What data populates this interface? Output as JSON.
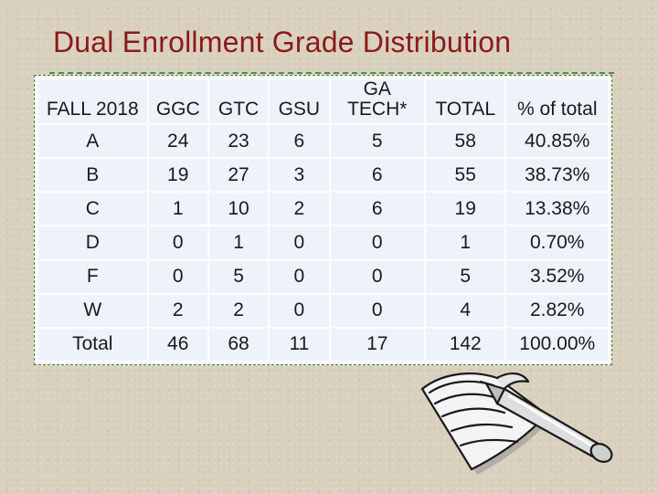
{
  "slide": {
    "title": "Dual Enrollment Grade Distribution"
  },
  "table": {
    "headers": [
      {
        "lines": [
          "FALL 2018"
        ]
      },
      {
        "lines": [
          "GGC"
        ]
      },
      {
        "lines": [
          "GTC"
        ]
      },
      {
        "lines": [
          "GSU"
        ]
      },
      {
        "lines": [
          "GA",
          "TECH*"
        ]
      },
      {
        "lines": [
          "TOTAL"
        ]
      },
      {
        "lines": [
          "% of total"
        ]
      }
    ],
    "rows": [
      [
        "A",
        "24",
        "23",
        "6",
        "5",
        "58",
        "40.85%"
      ],
      [
        "B",
        "19",
        "27",
        "3",
        "6",
        "55",
        "38.73%"
      ],
      [
        "C",
        "1",
        "10",
        "2",
        "6",
        "19",
        "13.38%"
      ],
      [
        "D",
        "0",
        "1",
        "0",
        "0",
        "1",
        "0.70%"
      ],
      [
        "F",
        "0",
        "5",
        "0",
        "0",
        "5",
        "3.52%"
      ],
      [
        "W",
        "2",
        "2",
        "0",
        "0",
        "4",
        "2.82%"
      ],
      [
        "Total",
        "46",
        "68",
        "11",
        "17",
        "142",
        "100.00%"
      ]
    ]
  },
  "clipart": {
    "icon": "notebook-pen-icon"
  }
}
